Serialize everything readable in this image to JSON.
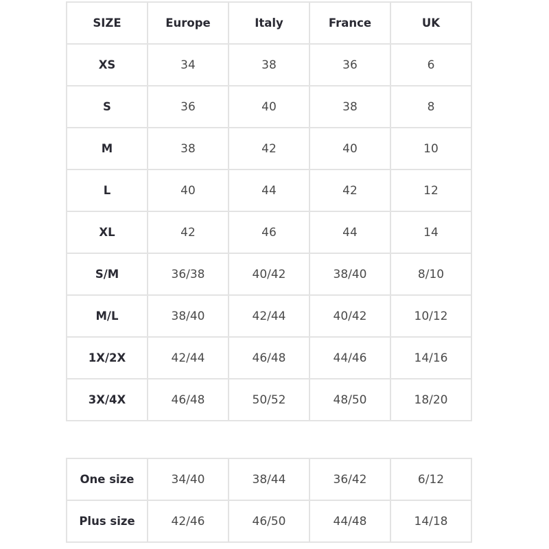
{
  "size_table": {
    "headers": [
      "SIZE",
      "Europe",
      "Italy",
      "France",
      "UK"
    ],
    "rows": [
      [
        "XS",
        "34",
        "38",
        "36",
        "6"
      ],
      [
        "S",
        "36",
        "40",
        "38",
        "8"
      ],
      [
        "M",
        "38",
        "42",
        "40",
        "10"
      ],
      [
        "L",
        "40",
        "44",
        "42",
        "12"
      ],
      [
        "XL",
        "42",
        "46",
        "44",
        "14"
      ],
      [
        "S/M",
        "36/38",
        "40/42",
        "38/40",
        "8/10"
      ],
      [
        "M/L",
        "38/40",
        "42/44",
        "40/42",
        "10/12"
      ],
      [
        "1X/2X",
        "42/44",
        "46/48",
        "44/46",
        "14/16"
      ],
      [
        "3X/4X",
        "46/48",
        "50/52",
        "48/50",
        "18/20"
      ]
    ]
  },
  "special_sizes_table": {
    "rows": [
      [
        "One size",
        "34/40",
        "38/44",
        "36/42",
        "6/12"
      ],
      [
        "Plus size",
        "42/46",
        "46/50",
        "44/48",
        "14/18"
      ]
    ]
  }
}
